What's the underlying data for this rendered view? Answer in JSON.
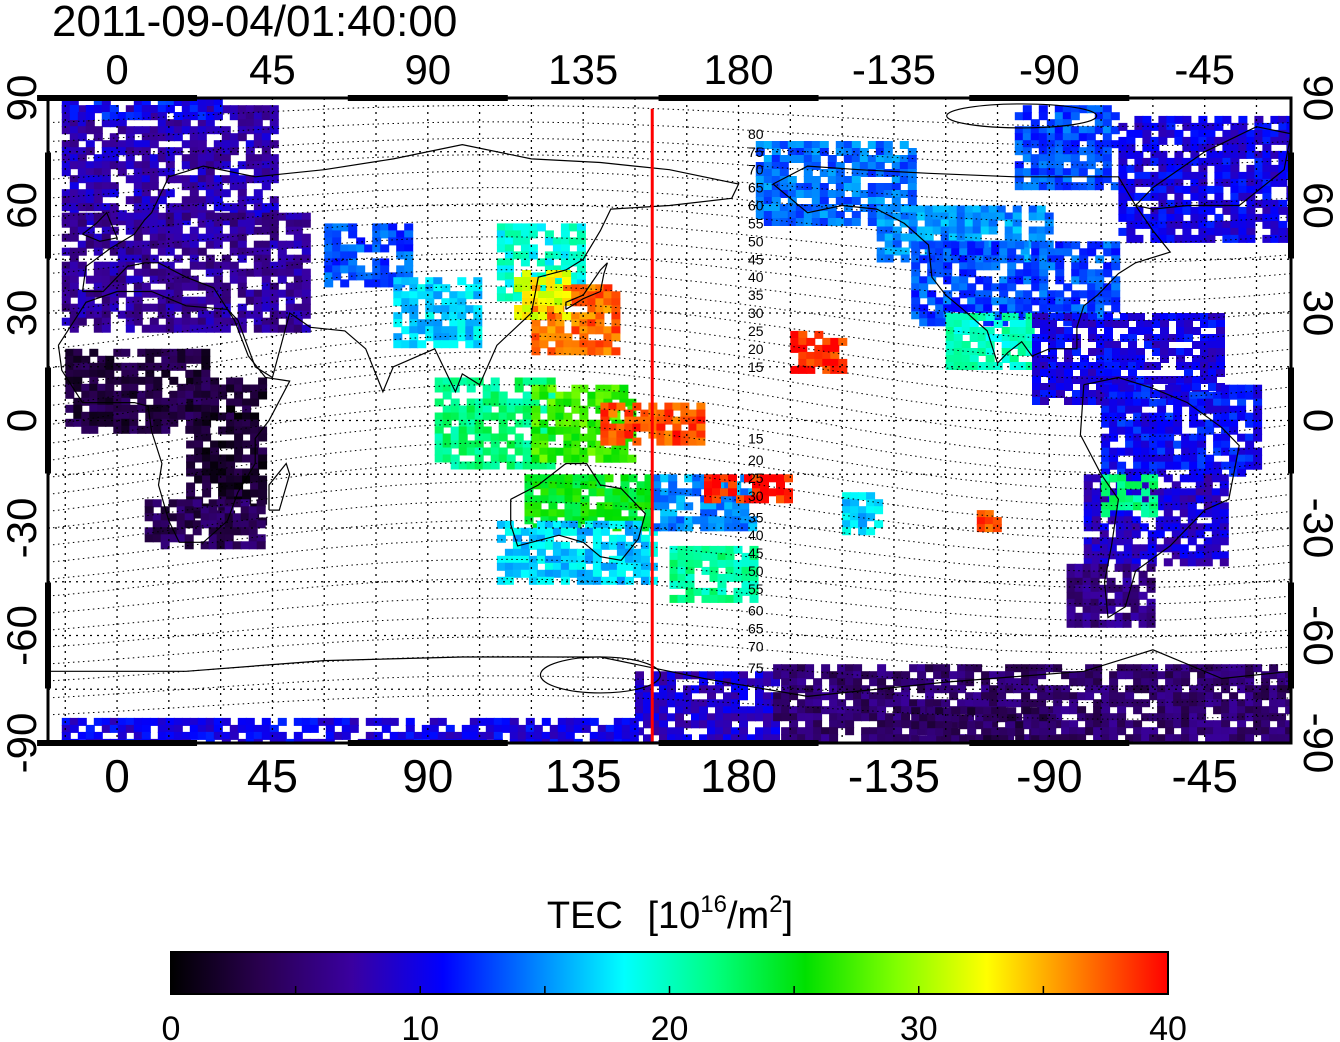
{
  "title": "2011-09-04/01:40:00",
  "map": {
    "lon_ticks": [
      "0",
      "45",
      "90",
      "135",
      "180",
      "-135",
      "-90",
      "-45"
    ],
    "lat_ticks": [
      "90",
      "60",
      "30",
      "0",
      "-30",
      "-60",
      "-90"
    ],
    "lon_range": [
      -20,
      340
    ],
    "lat_range": [
      -90,
      90
    ],
    "red_meridian_lon": 155,
    "red_meridian_color": "#ff0000",
    "magnetic_latitude_labels": [
      {
        "text": "80",
        "lat": 80
      },
      {
        "text": "75",
        "lat": 75
      },
      {
        "text": "70",
        "lat": 70
      },
      {
        "text": "65",
        "lat": 65
      },
      {
        "text": "60",
        "lat": 60
      },
      {
        "text": "55",
        "lat": 55
      },
      {
        "text": "50",
        "lat": 50
      },
      {
        "text": "45",
        "lat": 45
      },
      {
        "text": "40",
        "lat": 40
      },
      {
        "text": "35",
        "lat": 35
      },
      {
        "text": "30",
        "lat": 30
      },
      {
        "text": "25",
        "lat": 25
      },
      {
        "text": "20",
        "lat": 20
      },
      {
        "text": "15",
        "lat": 15
      },
      {
        "text": "15",
        "lat": -5
      },
      {
        "text": "20",
        "lat": -11
      },
      {
        "text": "25",
        "lat": -16
      },
      {
        "text": "30",
        "lat": -21
      },
      {
        "text": "35",
        "lat": -27
      },
      {
        "text": "40",
        "lat": -32
      },
      {
        "text": "45",
        "lat": -37
      },
      {
        "text": "50",
        "lat": -42
      },
      {
        "text": "55",
        "lat": -47
      },
      {
        "text": "60",
        "lat": -53
      },
      {
        "text": "65",
        "lat": -58
      },
      {
        "text": "70",
        "lat": -63
      },
      {
        "text": "75",
        "lat": -69
      }
    ],
    "tec_regions": [
      {
        "lon": [
          -16,
          45
        ],
        "lat": [
          55,
          88
        ],
        "value": 8
      },
      {
        "lon": [
          -16,
          55
        ],
        "lat": [
          25,
          58
        ],
        "value": 7
      },
      {
        "lon": [
          -16,
          30
        ],
        "lat": [
          86,
          90
        ],
        "value": 11
      },
      {
        "lon": [
          20,
          42
        ],
        "lat": [
          -28,
          12
        ],
        "value": 2
      },
      {
        "lon": [
          8,
          42
        ],
        "lat": [
          -35,
          -22
        ],
        "value": 4
      },
      {
        "lon": [
          -15,
          25
        ],
        "lat": [
          -2,
          20
        ],
        "value": 3
      },
      {
        "lon": [
          60,
          85
        ],
        "lat": [
          38,
          55
        ],
        "value": 13
      },
      {
        "lon": [
          80,
          105
        ],
        "lat": [
          22,
          40
        ],
        "value": 17
      },
      {
        "lon": [
          110,
          135
        ],
        "lat": [
          35,
          55
        ],
        "value": 19
      },
      {
        "lon": [
          120,
          145
        ],
        "lat": [
          20,
          38
        ],
        "value": 37
      },
      {
        "lon": [
          115,
          130
        ],
        "lat": [
          30,
          42
        ],
        "value": 32
      },
      {
        "lon": [
          92,
          125
        ],
        "lat": [
          -12,
          12
        ],
        "value": 22
      },
      {
        "lon": [
          120,
          150
        ],
        "lat": [
          -10,
          10
        ],
        "value": 27
      },
      {
        "lon": [
          140,
          170
        ],
        "lat": [
          -6,
          5
        ],
        "value": 38
      },
      {
        "lon": [
          195,
          210
        ],
        "lat": [
          15,
          25
        ],
        "value": 39
      },
      {
        "lon": [
          118,
          155
        ],
        "lat": [
          -30,
          -15
        ],
        "value": 25
      },
      {
        "lon": [
          110,
          155
        ],
        "lat": [
          -45,
          -28
        ],
        "value": 17
      },
      {
        "lon": [
          155,
          185
        ],
        "lat": [
          -30,
          -15
        ],
        "value": 15
      },
      {
        "lon": [
          160,
          185
        ],
        "lat": [
          -50,
          -35
        ],
        "value": 21
      },
      {
        "lon": [
          170,
          195
        ],
        "lat": [
          -22,
          -15
        ],
        "value": 39
      },
      {
        "lon": [
          150,
          190
        ],
        "lat": [
          -90,
          -70
        ],
        "value": 9
      },
      {
        "lon": [
          190,
          340
        ],
        "lat": [
          -90,
          -68
        ],
        "value": 5
      },
      {
        "lon": [
          -16,
          150
        ],
        "lat": [
          -90,
          -83
        ],
        "value": 10
      },
      {
        "lon": [
          185,
          230
        ],
        "lat": [
          55,
          78
        ],
        "value": 14
      },
      {
        "lon": [
          220,
          270
        ],
        "lat": [
          45,
          60
        ],
        "value": 15
      },
      {
        "lon": [
          230,
          290
        ],
        "lat": [
          28,
          50
        ],
        "value": 13
      },
      {
        "lon": [
          240,
          265
        ],
        "lat": [
          15,
          30
        ],
        "value": 20
      },
      {
        "lon": [
          265,
          320
        ],
        "lat": [
          5,
          30
        ],
        "value": 10
      },
      {
        "lon": [
          260,
          290
        ],
        "lat": [
          65,
          88
        ],
        "value": 13
      },
      {
        "lon": [
          290,
          340
        ],
        "lat": [
          50,
          85
        ],
        "value": 10
      },
      {
        "lon": [
          285,
          330
        ],
        "lat": [
          -15,
          10
        ],
        "value": 11
      },
      {
        "lon": [
          280,
          320
        ],
        "lat": [
          -40,
          -15
        ],
        "value": 9
      },
      {
        "lon": [
          275,
          300
        ],
        "lat": [
          -56,
          -40
        ],
        "value": 6
      },
      {
        "lon": [
          285,
          300
        ],
        "lat": [
          -25,
          -15
        ],
        "value": 22
      },
      {
        "lon": [
          249,
          255
        ],
        "lat": [
          -30,
          -25
        ],
        "value": 38
      },
      {
        "lon": [
          210,
          220
        ],
        "lat": [
          -30,
          -20
        ],
        "value": 17
      },
      {
        "lon": [
          230,
          270
        ],
        "lat": [
          -90,
          -80
        ],
        "value": 4
      }
    ]
  },
  "colorbar": {
    "label_main": "TEC",
    "label_unit_prefix": "[10",
    "label_unit_exp": "16",
    "label_unit_suffix": "/m",
    "label_unit_exp2": "2",
    "label_unit_close": "]",
    "ticks": [
      "0",
      "10",
      "20",
      "30",
      "40"
    ],
    "range": [
      0,
      40
    ],
    "stops": [
      "#000000",
      "#2a0050",
      "#3a00a0",
      "#0000ff",
      "#0080ff",
      "#00ffff",
      "#00ff80",
      "#00e000",
      "#80ff00",
      "#ffff00",
      "#ff8000",
      "#ff0000"
    ]
  }
}
